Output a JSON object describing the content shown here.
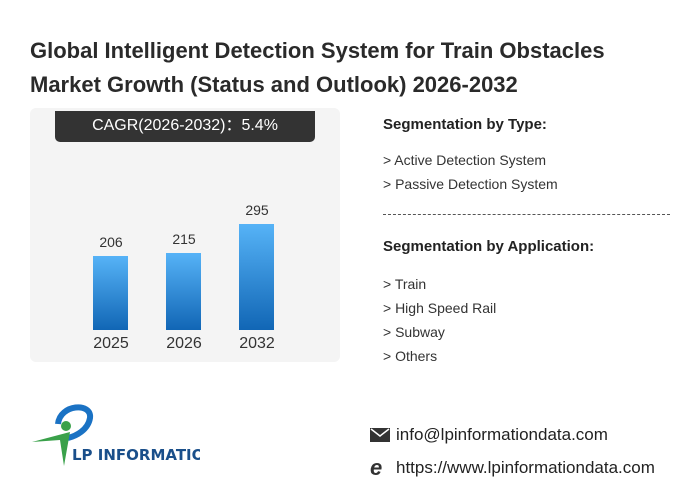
{
  "title": {
    "line1": "Global Intelligent Detection System for Train Obstacles",
    "line2": "Market Growth (Status and Outlook) 2026-2032"
  },
  "cagr": "CAGR(2026-2032)：5.4%",
  "chart_data": {
    "type": "bar",
    "categories": [
      "2025",
      "2026",
      "2032"
    ],
    "values": [
      206,
      215,
      295
    ],
    "title": "",
    "xlabel": "",
    "ylabel": "",
    "ylim": [
      0,
      300
    ]
  },
  "segments": {
    "type_title": "Segmentation by Type:",
    "types": [
      "> Active Detection System",
      "> Passive Detection System"
    ],
    "app_title": "Segmentation by Application:",
    "apps": [
      "> Train",
      "> High Speed Rail",
      "> Subway",
      "> Others"
    ]
  },
  "footer": {
    "logo_text": "LP INFORMATION",
    "email": "info@lpinformationdata.com",
    "url": "https://www.lpinformationdata.com"
  },
  "colors": {
    "bar_top": "#56b3f7",
    "bar_bottom": "#1166b5",
    "logo_blue": "#1a72c4",
    "logo_green": "#3aa14a"
  }
}
